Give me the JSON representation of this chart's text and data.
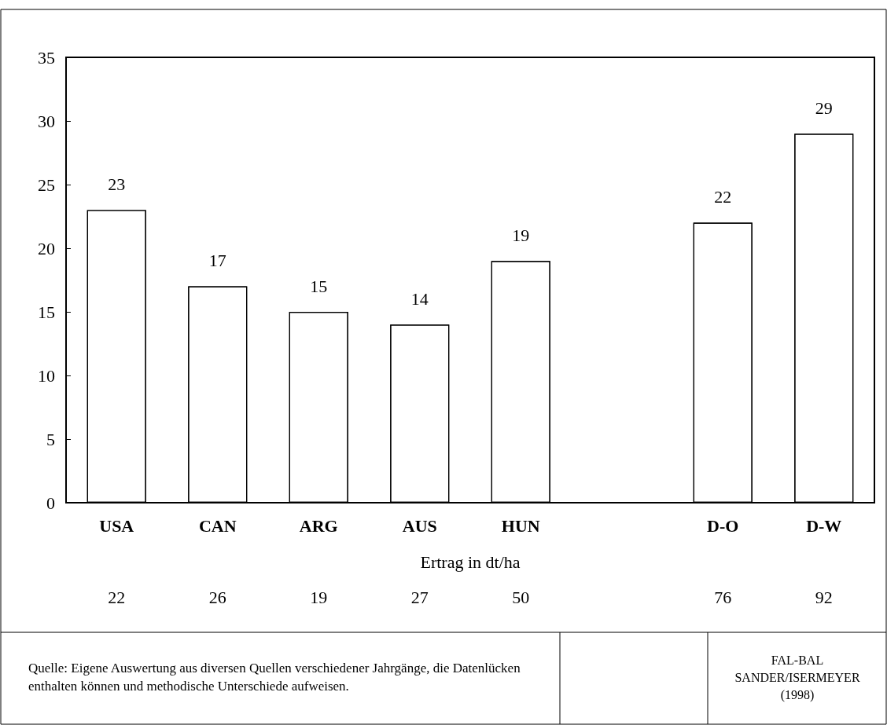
{
  "chart_data": {
    "type": "bar",
    "xlabel": "Ertrag in dt/ha",
    "categories": [
      "USA",
      "CAN",
      "ARG",
      "AUS",
      "HUN",
      null,
      "D-O",
      "D-W"
    ],
    "values": [
      23,
      17,
      15,
      14,
      19,
      null,
      22,
      29
    ],
    "color": "#ffffff",
    "ylim": [
      0,
      35
    ],
    "yticks": [
      0,
      5,
      10,
      15,
      20,
      25,
      30,
      35
    ],
    "data_labels": true,
    "grid": false,
    "annotations": [
      "22",
      "26",
      "19",
      "27",
      "50",
      "76",
      "92",
      "Quelle: Eigene Auswertung aus diversen Quellen verschiedener Jahrgänge, die Datenlücken enthalten können und methodische Unterschiede aufweisen.",
      "FAL-BAL\nSANDER/ISERMEYER\n(1998)"
    ]
  }
}
